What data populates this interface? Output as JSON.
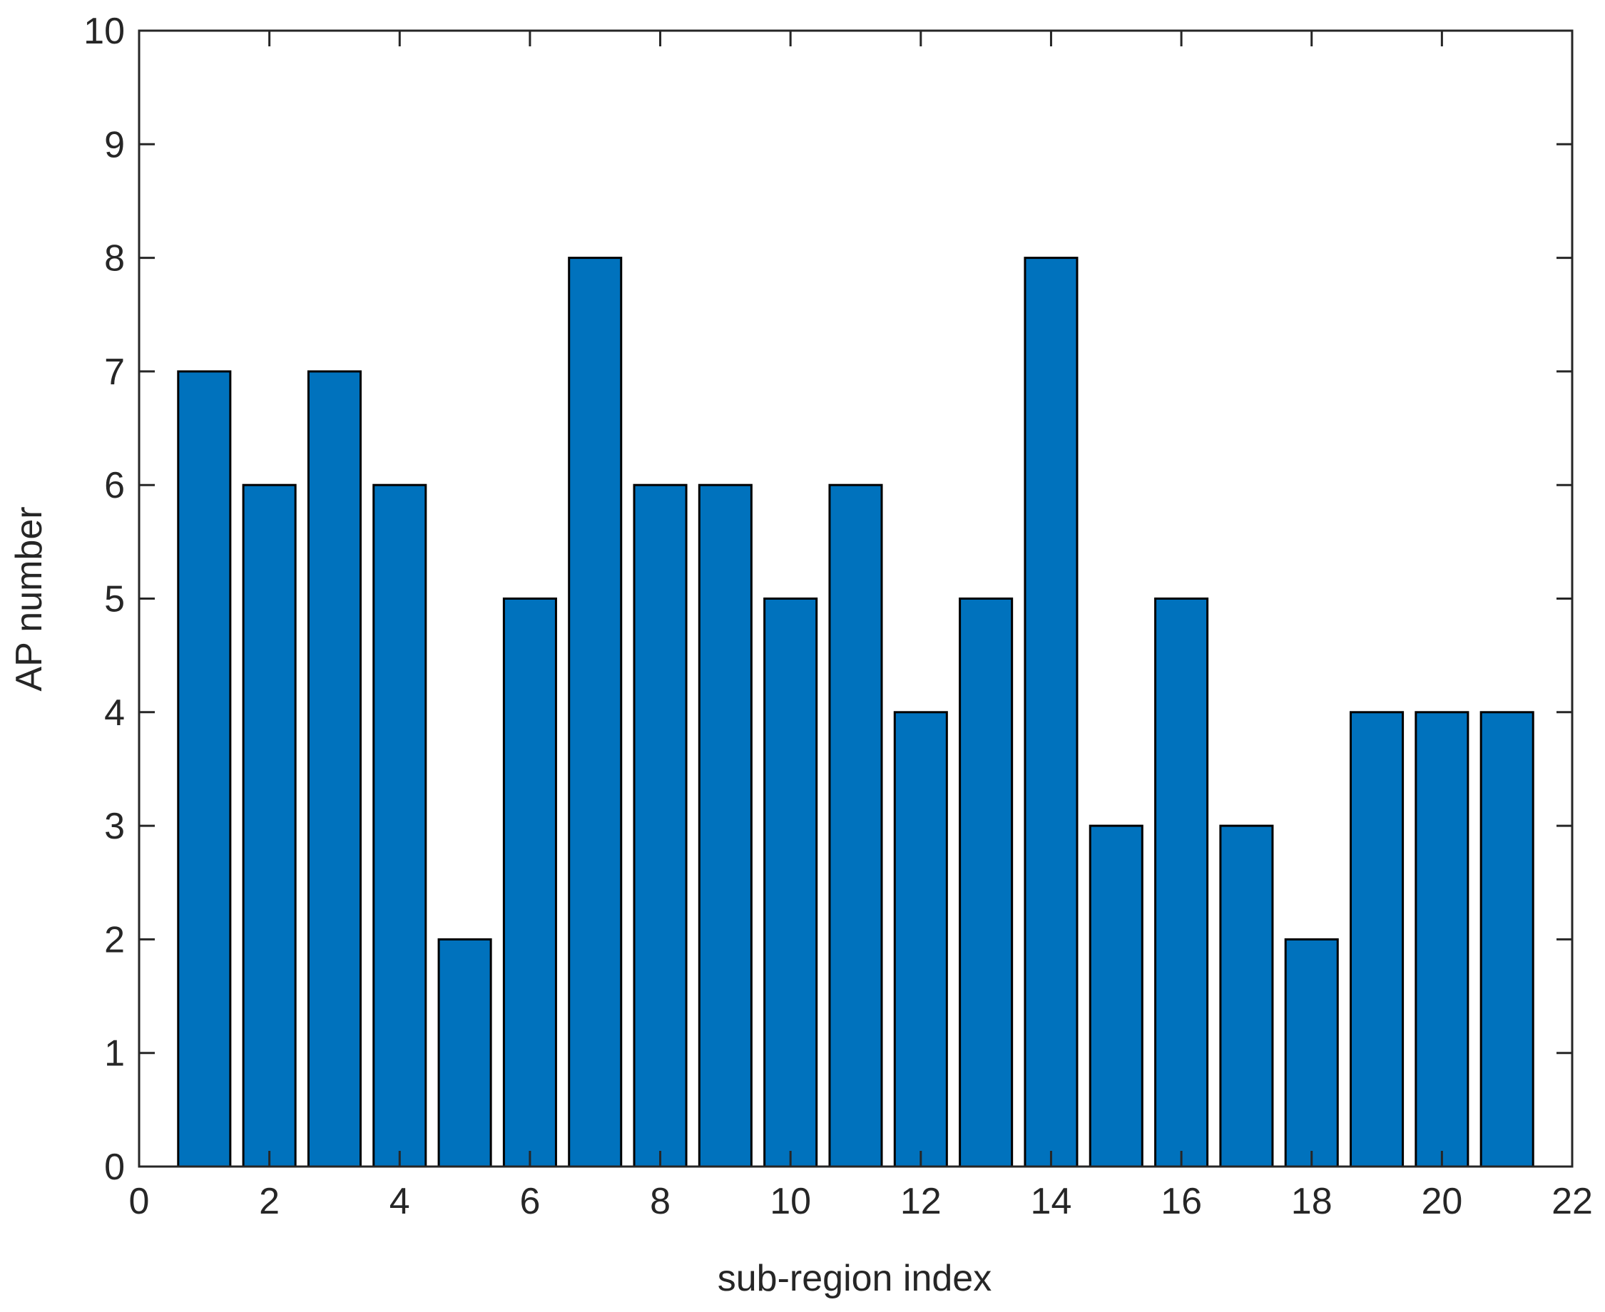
{
  "chart_data": {
    "type": "bar",
    "x": [
      1,
      2,
      3,
      4,
      5,
      6,
      7,
      8,
      9,
      10,
      11,
      12,
      13,
      14,
      15,
      16,
      17,
      18,
      19,
      20,
      21
    ],
    "values": [
      7,
      6,
      7,
      6,
      2,
      5,
      8,
      6,
      6,
      5,
      6,
      4,
      5,
      8,
      3,
      5,
      3,
      2,
      4,
      4,
      4
    ],
    "color": "#0072bd",
    "xlabel": "sub-region index",
    "ylabel": "AP number",
    "xlim": [
      0,
      22
    ],
    "xticks": [
      0,
      2,
      4,
      6,
      8,
      10,
      12,
      14,
      16,
      18,
      20,
      22
    ],
    "ylim": [
      0,
      10
    ],
    "yticks": [
      0,
      1,
      2,
      3,
      4,
      5,
      6,
      7,
      8,
      9,
      10
    ],
    "grid": false
  }
}
